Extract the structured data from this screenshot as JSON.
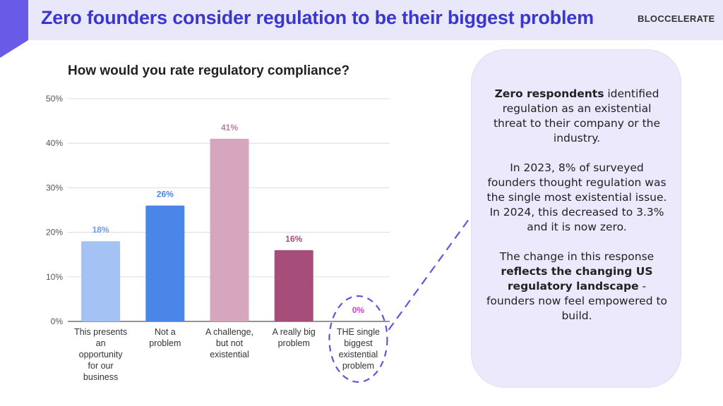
{
  "header": {
    "title": "Zero founders consider regulation to be their biggest problem",
    "logo": "BLOCCELERATE"
  },
  "colors": {
    "header_bg": "#e9e7fa",
    "accent": "#6a5ae8",
    "title": "#3a37d0",
    "panel_bg": "#ebe9fb",
    "highlight": "#6a4fe0"
  },
  "chart_data": {
    "type": "bar",
    "title": "How would you rate regulatory compliance?",
    "categories": [
      [
        "This presents",
        "an",
        "opportunity",
        "for our",
        "business"
      ],
      [
        "Not a",
        "problem"
      ],
      [
        "A challenge,",
        "but not",
        "existential"
      ],
      [
        "A really big",
        "problem"
      ],
      [
        "THE single",
        "biggest",
        "existential",
        "problem"
      ]
    ],
    "values": [
      18,
      26,
      41,
      16,
      0
    ],
    "data_labels": [
      "18%",
      "26%",
      "41%",
      "16%",
      "0%"
    ],
    "bar_colors": [
      "#a4c2f4",
      "#4a86e8",
      "#d5a6bd",
      "#a64d79",
      "#ff00ff"
    ],
    "label_colors": [
      "#6d9eeb",
      "#4a86e8",
      "#c27ba0",
      "#a64d79",
      "#e040e0"
    ],
    "y_ticks": [
      "0%",
      "10%",
      "20%",
      "30%",
      "40%",
      "50%"
    ],
    "ylim": [
      0,
      50
    ],
    "grid": true,
    "highlighted_category": "THE single biggest existential problem"
  },
  "panel": {
    "p1_bold": "Zero respondents",
    "p1_rest": " identified regulation as an existential threat to their company or the industry.",
    "p2": "In 2023, 8% of surveyed founders thought regulation was the single most existential issue. In 2024, this decreased to 3.3% and it is now zero.",
    "p3_start": "The change in this response ",
    "p3_bold": "reflects the changing US regulatory landscape",
    "p3_end": " - founders now feel empowered to build."
  }
}
